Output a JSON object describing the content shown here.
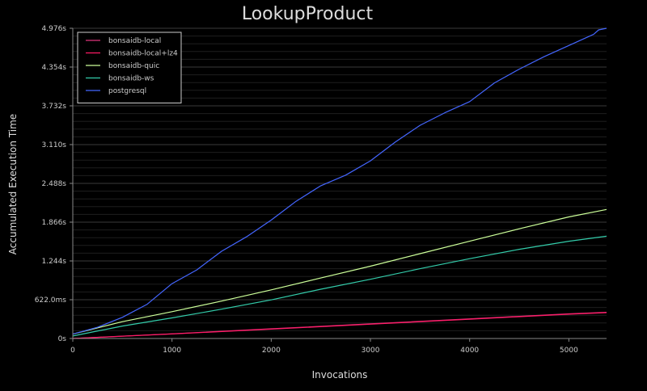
{
  "chart_data": {
    "type": "line",
    "title": "LookupProduct",
    "xlabel": "Invocations",
    "ylabel": "Accumulated Execution Time",
    "xlim": [
      0,
      5380
    ],
    "ylim": [
      0,
      4.976
    ],
    "x_ticks": [
      0,
      1000,
      2000,
      3000,
      4000,
      5000
    ],
    "x_tick_labels": [
      "0",
      "1000",
      "2000",
      "3000",
      "4000",
      "5000"
    ],
    "y_ticks": [
      0,
      0.622,
      1.244,
      1.866,
      2.488,
      3.11,
      3.732,
      4.354,
      4.976
    ],
    "y_tick_labels": [
      "0s",
      "622.0ms",
      "1.244s",
      "1.866s",
      "2.488s",
      "3.110s",
      "3.732s",
      "4.354s",
      "4.976s"
    ],
    "grid": true,
    "legend_position": "top-left",
    "series": [
      {
        "name": "bonsaidb-local",
        "color": "#e0357c",
        "x": [
          0,
          1000,
          2000,
          3000,
          4000,
          5000,
          5380
        ],
        "values": [
          0,
          0.075,
          0.155,
          0.235,
          0.315,
          0.395,
          0.42
        ]
      },
      {
        "name": "bonsaidb-local+lz4",
        "color": "#ff1a66",
        "x": [
          0,
          1000,
          2000,
          3000,
          4000,
          5000,
          5380
        ],
        "values": [
          0,
          0.072,
          0.15,
          0.23,
          0.31,
          0.39,
          0.415
        ]
      },
      {
        "name": "bonsaidb-quic",
        "color": "#ccff99",
        "x": [
          0,
          500,
          1000,
          1500,
          2000,
          2500,
          3000,
          3500,
          4000,
          4500,
          5000,
          5380
        ],
        "values": [
          0.07,
          0.27,
          0.43,
          0.6,
          0.78,
          0.97,
          1.16,
          1.36,
          1.56,
          1.76,
          1.95,
          2.07
        ]
      },
      {
        "name": "bonsaidb-ws",
        "color": "#33ccaa",
        "x": [
          0,
          500,
          1000,
          1500,
          2000,
          2500,
          3000,
          3500,
          4000,
          4500,
          5000,
          5380
        ],
        "values": [
          0.04,
          0.2,
          0.33,
          0.47,
          0.62,
          0.79,
          0.95,
          1.12,
          1.28,
          1.43,
          1.56,
          1.64
        ]
      },
      {
        "name": "postgresql",
        "color": "#4466ff",
        "x": [
          0,
          250,
          500,
          750,
          1000,
          1250,
          1500,
          1750,
          2000,
          2250,
          2500,
          2750,
          3000,
          3250,
          3500,
          3750,
          4000,
          4250,
          4500,
          4750,
          5000,
          5250,
          5300,
          5380
        ],
        "values": [
          0.07,
          0.18,
          0.34,
          0.55,
          0.88,
          1.1,
          1.4,
          1.63,
          1.9,
          2.2,
          2.45,
          2.62,
          2.85,
          3.15,
          3.42,
          3.62,
          3.8,
          4.1,
          4.32,
          4.52,
          4.7,
          4.88,
          4.95,
          4.976
        ]
      }
    ]
  }
}
